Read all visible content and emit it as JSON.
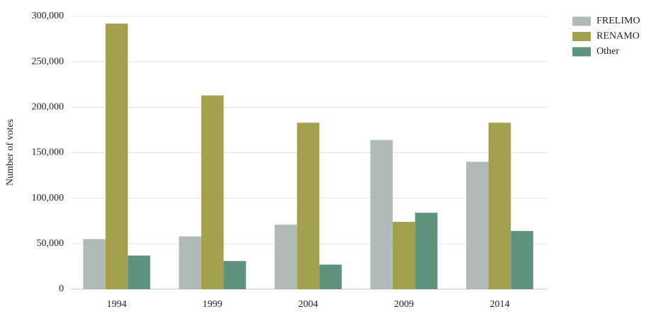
{
  "chart_data": {
    "type": "bar",
    "y_label": "Number of votes",
    "categories": [
      "1994",
      "1999",
      "2004",
      "2009",
      "2014"
    ],
    "series": [
      {
        "name": "FRELIMO",
        "color": "#b2bab7",
        "values": [
          55000,
          58000,
          71000,
          164000,
          140000
        ]
      },
      {
        "name": "RENAMO",
        "color": "#a2a04c",
        "values": [
          292000,
          213000,
          183000,
          74000,
          183000
        ]
      },
      {
        "name": "Other",
        "color": "#5e927a",
        "values": [
          37000,
          31000,
          27000,
          84000,
          64000
        ]
      }
    ],
    "ylim": [
      0,
      300000
    ],
    "yticks": [
      0,
      {
        "value": 50000,
        "label": "50,000"
      },
      {
        "value": 100000,
        "label": "100,000"
      },
      {
        "value": 150000,
        "label": "150,000"
      },
      {
        "value": 200000,
        "label": "200,000"
      },
      {
        "value": 250000,
        "label": "250,000"
      },
      {
        "value": 300000,
        "label": "300,000"
      }
    ],
    "grid": true,
    "legend": "top-right"
  }
}
